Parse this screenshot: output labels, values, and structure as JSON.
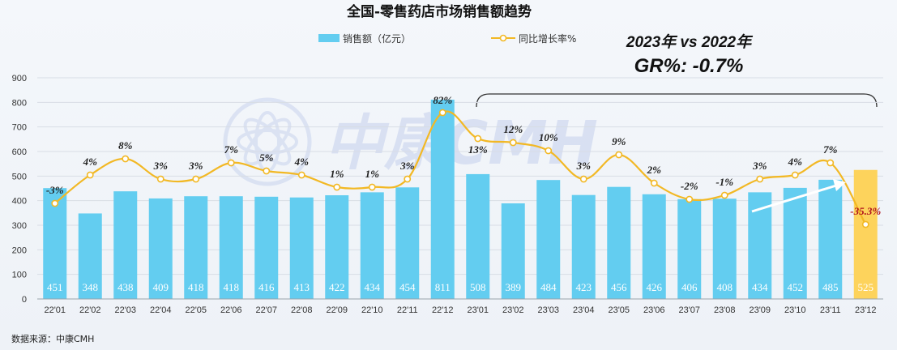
{
  "colors": {
    "bar": "#63cdf0",
    "bar_highlight": "#fdd35c",
    "line": "#f2b824",
    "point_fill": "#ffffff",
    "grid": "#d8dde5",
    "neg_strong": "#b0121b",
    "watermark": "#c9d3ee"
  },
  "watermark": {
    "text": "中康CMH",
    "icon": "flower-logo-icon"
  },
  "annotation": {
    "line1": "2023年 vs 2022年",
    "line2": "GR%: -0.7%",
    "arrow_icon": "upward-trend-arrow-icon"
  },
  "source": "数据来源：中康CMH",
  "chart_data": {
    "type": "bar",
    "title": "全国-零售药店市场销售额趋势",
    "categories": [
      "22'01",
      "22'02",
      "22'03",
      "22'04",
      "22'05",
      "22'06",
      "22'07",
      "22'08",
      "22'09",
      "22'10",
      "22'11",
      "22'12",
      "23'01",
      "23'02",
      "23'03",
      "23'04",
      "23'05",
      "23'06",
      "23'07",
      "23'08",
      "23'09",
      "23'10",
      "23'11",
      "23'12"
    ],
    "series": [
      {
        "name": "销售额（亿元）",
        "type": "bar",
        "values": [
          451,
          348,
          438,
          409,
          418,
          418,
          416,
          413,
          422,
          434,
          454,
          811,
          508,
          389,
          484,
          423,
          456,
          426,
          406,
          408,
          434,
          452,
          485,
          525
        ],
        "highlight_index": 23
      },
      {
        "name": "同比增长率%",
        "type": "line",
        "values": [
          -3,
          4,
          8,
          3,
          3,
          7,
          5,
          4,
          1,
          1,
          3,
          82,
          13,
          12,
          10,
          3,
          9,
          2,
          -2,
          -1,
          3,
          4,
          7,
          -35.3
        ],
        "labels": [
          "-3%",
          "4%",
          "8%",
          "3%",
          "3%",
          "7%",
          "5%",
          "4%",
          "1%",
          "1%",
          "3%",
          "82%",
          "13%",
          "12%",
          "10%",
          "3%",
          "9%",
          "2%",
          "-2%",
          "-1%",
          "3%",
          "4%",
          "7%",
          "-35.3%"
        ]
      }
    ],
    "yticks": [
      "0",
      "100",
      "200",
      "300",
      "400",
      "500",
      "600",
      "700",
      "800",
      "900"
    ],
    "ylim": [
      0,
      900
    ],
    "legend_position": "top-center",
    "grid": true
  }
}
